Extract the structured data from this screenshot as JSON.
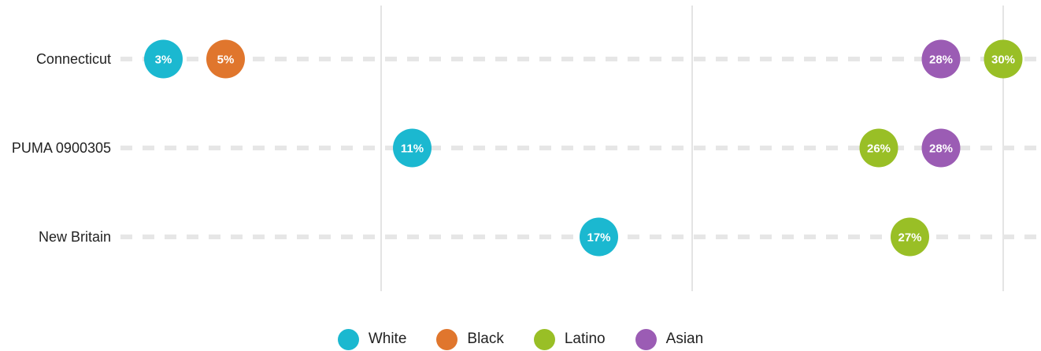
{
  "chart_data": {
    "type": "scatter",
    "categories": [
      "Connecticut",
      "PUMA 0900305",
      "New Britain"
    ],
    "series": [
      {
        "name": "White",
        "color": "#1bb8d0",
        "values": [
          3,
          11,
          17
        ]
      },
      {
        "name": "Black",
        "color": "#e0762d",
        "values": [
          5,
          null,
          null
        ]
      },
      {
        "name": "Latino",
        "color": "#99bf26",
        "values": [
          30,
          26,
          27
        ]
      },
      {
        "name": "Asian",
        "color": "#9b5cb4",
        "values": [
          28,
          28,
          null
        ]
      }
    ],
    "value_suffix": "%",
    "xlim": [
      0,
      30
    ],
    "x_gridlines": [
      10,
      20,
      30
    ],
    "legend_position": "bottom"
  }
}
